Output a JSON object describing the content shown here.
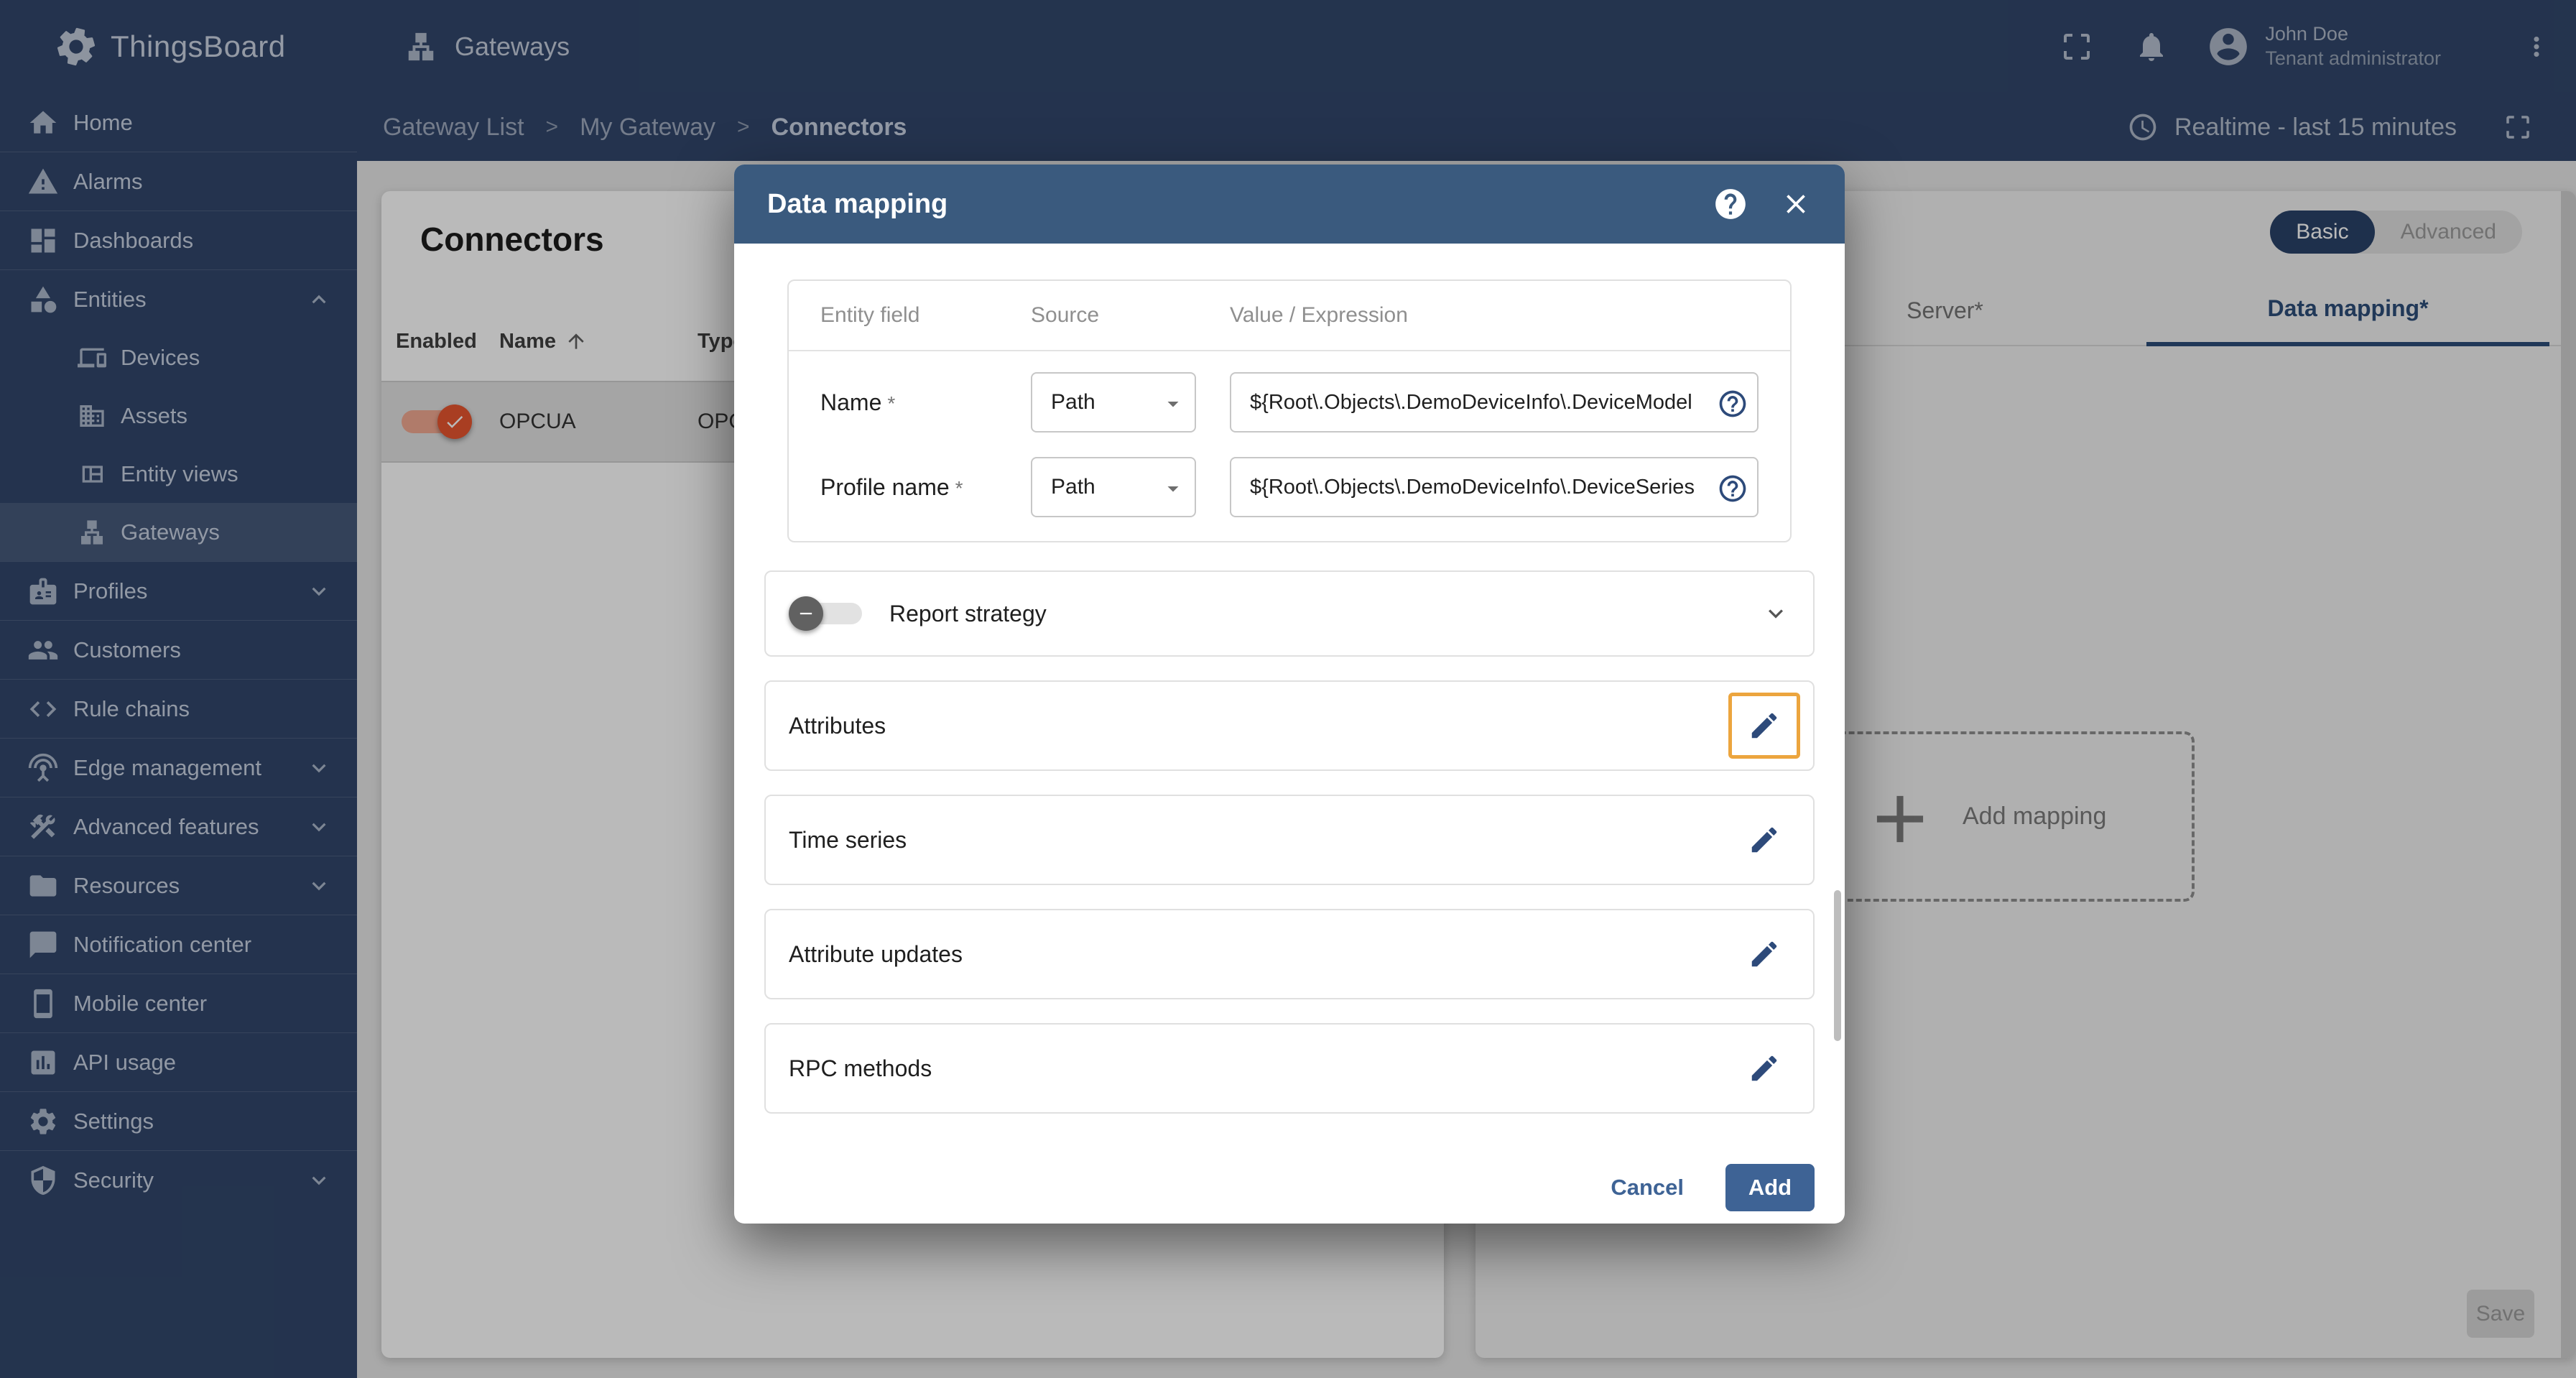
{
  "topbar": {
    "logo_text": "ThingsBoard",
    "section": {
      "label": "Gateways"
    },
    "user": {
      "name": "John Doe",
      "role": "Tenant administrator"
    }
  },
  "breadcrumb": {
    "separator": ">",
    "items": [
      {
        "label": "Gateway List"
      },
      {
        "label": "My Gateway"
      },
      {
        "label": "Connectors"
      }
    ]
  },
  "timewindow": {
    "label": "Realtime - last 15 minutes"
  },
  "sidebar": {
    "items": [
      {
        "label": "Home"
      },
      {
        "label": "Alarms"
      },
      {
        "label": "Dashboards"
      },
      {
        "label": "Entities"
      },
      {
        "label": "Devices"
      },
      {
        "label": "Assets"
      },
      {
        "label": "Entity views"
      },
      {
        "label": "Gateways"
      },
      {
        "label": "Profiles"
      },
      {
        "label": "Customers"
      },
      {
        "label": "Rule chains"
      },
      {
        "label": "Edge management"
      },
      {
        "label": "Advanced features"
      },
      {
        "label": "Resources"
      },
      {
        "label": "Notification center"
      },
      {
        "label": "Mobile center"
      },
      {
        "label": "API usage"
      },
      {
        "label": "Settings"
      },
      {
        "label": "Security"
      }
    ]
  },
  "connectors": {
    "title": "Connectors",
    "columns": {
      "enabled": "Enabled",
      "name": "Name",
      "type": "Type"
    },
    "rows": [
      {
        "enabled": true,
        "name": "OPCUA",
        "type": "OPCUA"
      }
    ]
  },
  "gateway_config": {
    "modes": {
      "basic": "Basic",
      "advanced": "Advanced"
    },
    "selected_mode": "Basic",
    "tabs": {
      "server": "Server*",
      "data_mapping": "Data mapping*"
    },
    "add_mapping_label": "Add mapping",
    "save_label": "Save"
  },
  "modal": {
    "title": "Data mapping",
    "table": {
      "headers": {
        "field": "Entity field",
        "source": "Source",
        "value": "Value / Expression"
      },
      "rows": [
        {
          "field": "Name",
          "required": "*",
          "source": "Path",
          "value": "${Root\\.Objects\\.DemoDeviceInfo\\.DeviceModel"
        },
        {
          "field": "Profile name",
          "required": "*",
          "source": "Path",
          "value": "${Root\\.Objects\\.DemoDeviceInfo\\.DeviceSeries"
        }
      ]
    },
    "report_strategy": {
      "label": "Report strategy"
    },
    "sections": [
      {
        "label": "Attributes"
      },
      {
        "label": "Time series"
      },
      {
        "label": "Attribute updates"
      },
      {
        "label": "RPC methods"
      }
    ],
    "actions": {
      "cancel": "Cancel",
      "add": "Add"
    }
  },
  "colors": {
    "navy_bar": "#32476B",
    "modal_header_blue": "#3A5A7E",
    "accent_blue": "#3E6395",
    "toggle_orange": "#E8552F",
    "focus_orange": "#ECA53E"
  }
}
